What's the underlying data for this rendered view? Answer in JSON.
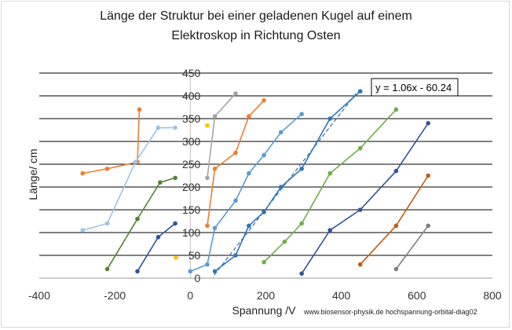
{
  "title_line1": "Länge der Struktur bei einer geladenen Kugel auf einem",
  "title_line2": "Elektroskop in Richtung Osten",
  "credit": "www.biosensor-physik.de  hochspannung-orbital-diag02",
  "chart_data": {
    "type": "line",
    "xlabel": "Spannung /V",
    "ylabel": "Länge/ cm",
    "xlim": [
      -400,
      800
    ],
    "ylim": [
      0,
      450
    ],
    "x_ticks": [
      -400,
      -200,
      0,
      200,
      400,
      600,
      800
    ],
    "y_ticks": [
      0,
      50,
      100,
      150,
      200,
      250,
      300,
      350,
      400,
      450
    ],
    "grid": "horizontal",
    "trendline_label": "y = 1.06x - 60.24",
    "trendline": {
      "slope": 1.06,
      "intercept": -60.24,
      "x_range": [
        63,
        440
      ],
      "color": "#4472c4"
    },
    "series": [
      {
        "color": "#ed7d31",
        "points": [
          [
            -285,
            230
          ],
          [
            -220,
            240
          ],
          [
            -140,
            255
          ],
          [
            -135,
            370
          ]
        ]
      },
      {
        "color": "#9dc3e6",
        "points": [
          [
            -285,
            105
          ],
          [
            -220,
            120
          ],
          [
            -145,
            255
          ],
          [
            -85,
            330
          ],
          [
            -40,
            330
          ]
        ]
      },
      {
        "color": "#548235",
        "points": [
          [
            -220,
            20
          ],
          [
            -140,
            130
          ],
          [
            -80,
            210
          ],
          [
            -40,
            220
          ]
        ]
      },
      {
        "color": "#2f5597",
        "points": [
          [
            -140,
            15
          ],
          [
            -85,
            90
          ],
          [
            -40,
            120
          ]
        ]
      },
      {
        "color": "#ffc000",
        "points": [
          [
            -38,
            45
          ]
        ]
      },
      {
        "color": "#ffc000",
        "points": [
          [
            45,
            335
          ]
        ]
      },
      {
        "color": "#5b9bd5",
        "points": [
          [
            0,
            15
          ],
          [
            45,
            30
          ],
          [
            65,
            110
          ],
          [
            120,
            170
          ],
          [
            155,
            230
          ],
          [
            195,
            270
          ],
          [
            240,
            320
          ],
          [
            295,
            360
          ]
        ]
      },
      {
        "color": "#a5a5a5",
        "points": [
          [
            45,
            220
          ],
          [
            65,
            355
          ],
          [
            120,
            405
          ]
        ]
      },
      {
        "color": "#ed7d31",
        "points": [
          [
            45,
            115
          ],
          [
            65,
            240
          ],
          [
            120,
            275
          ],
          [
            155,
            355
          ],
          [
            195,
            390
          ]
        ]
      },
      {
        "color": "#2e75b6",
        "points": [
          [
            65,
            15
          ],
          [
            120,
            50
          ],
          [
            155,
            115
          ],
          [
            195,
            145
          ],
          [
            240,
            200
          ],
          [
            295,
            240
          ],
          [
            370,
            350
          ],
          [
            450,
            410
          ]
        ]
      },
      {
        "color": "#70ad47",
        "points": [
          [
            195,
            35
          ],
          [
            250,
            80
          ],
          [
            295,
            120
          ],
          [
            370,
            230
          ],
          [
            450,
            285
          ],
          [
            545,
            370
          ]
        ]
      },
      {
        "color": "#2f5597",
        "points": [
          [
            295,
            10
          ],
          [
            370,
            105
          ],
          [
            450,
            150
          ],
          [
            545,
            235
          ],
          [
            630,
            340
          ]
        ]
      },
      {
        "color": "#c55a11",
        "points": [
          [
            450,
            30
          ],
          [
            545,
            115
          ],
          [
            630,
            225
          ]
        ]
      },
      {
        "color": "#7f7f7f",
        "points": [
          [
            545,
            20
          ],
          [
            630,
            115
          ]
        ]
      }
    ]
  }
}
